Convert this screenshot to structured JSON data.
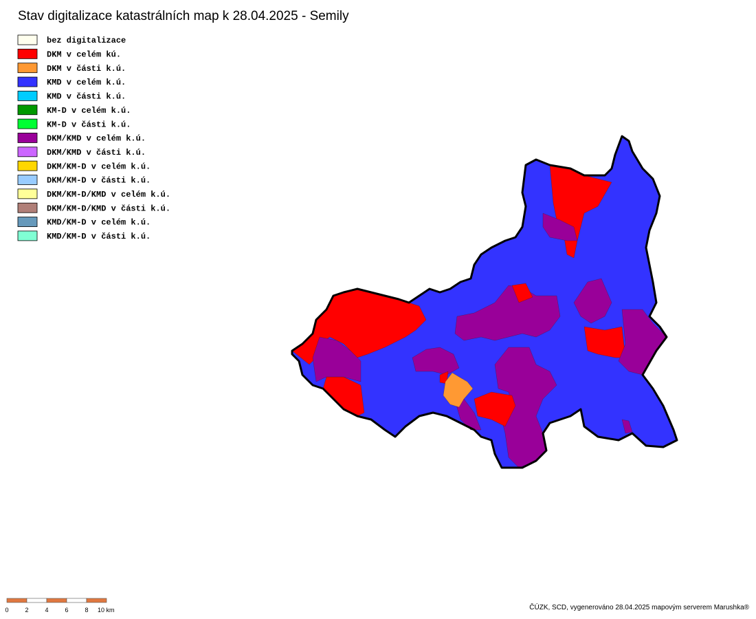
{
  "title": "Stav digitalizace katastrálních map k 28.04.2025 - Semily",
  "legend": [
    {
      "label": "bez digitalizace",
      "color": "#ffffee"
    },
    {
      "label": "DKM v celém kú.",
      "color": "#ff0000"
    },
    {
      "label": "DKM v části k.ú.",
      "color": "#ff9933"
    },
    {
      "label": "KMD v celém k.ú.",
      "color": "#3333ff"
    },
    {
      "label": "KMD v části k.ú.",
      "color": "#00ccff"
    },
    {
      "label": "KM-D v celém k.ú.",
      "color": "#009900"
    },
    {
      "label": "KM-D v části k.ú.",
      "color": "#00ff33"
    },
    {
      "label": "DKM/KMD v celém k.ú.",
      "color": "#990099"
    },
    {
      "label": "DKM/KMD v části k.ú.",
      "color": "#cc66ff"
    },
    {
      "label": "DKM/KM-D v celém k.ú.",
      "color": "#ffd700"
    },
    {
      "label": "DKM/KM-D v části k.ú.",
      "color": "#99ccff"
    },
    {
      "label": "DKM/KM-D/KMD v celém k.ú.",
      "color": "#ffff99"
    },
    {
      "label": "DKM/KM-D/KMD v části k.ú.",
      "color": "#b07f78"
    },
    {
      "label": "KMD/KM-D v celém k.ú.",
      "color": "#6699bb"
    },
    {
      "label": "KMD/KM-D v části k.ú.",
      "color": "#80ffd4"
    }
  ],
  "scale_bar": {
    "labels": [
      "0",
      "2",
      "4",
      "6",
      "8",
      "10 km"
    ],
    "color": "#e07840"
  },
  "credit": "ČÚZK, SCD, vygenerováno 28.04.2025 mapovým serverem Marushka®"
}
